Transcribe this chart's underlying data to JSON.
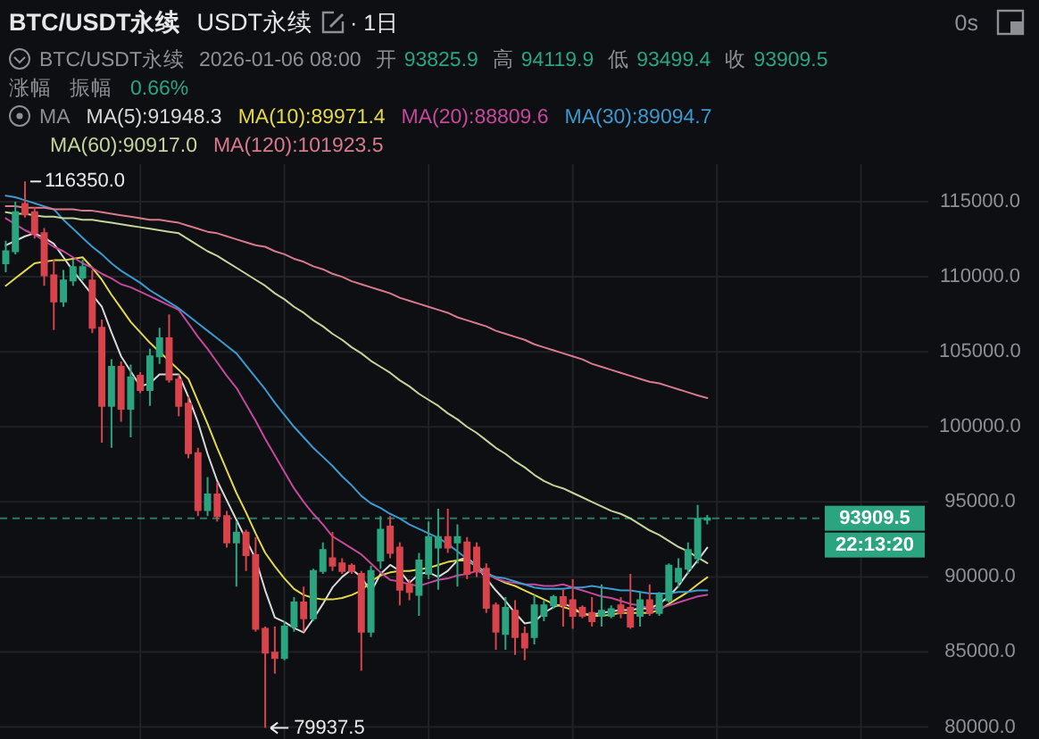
{
  "chart_data": {
    "type": "candlestick",
    "title": "BTC/USDT永续",
    "subtitle": "USDT永续",
    "categories": [
      null,
      null,
      null,
      null,
      null,
      null,
      null,
      null,
      null,
      null,
      null,
      null,
      null,
      null,
      null,
      null,
      null,
      null,
      null,
      null,
      null,
      null,
      null,
      null,
      null,
      null,
      null,
      null,
      null,
      null,
      null,
      null,
      null,
      null,
      null,
      null,
      null,
      null,
      null,
      null,
      null,
      null,
      null,
      null,
      null,
      null,
      null,
      null,
      null,
      null,
      null,
      null,
      null,
      null,
      null,
      null,
      null,
      null,
      null,
      null,
      null,
      null,
      null,
      null,
      null,
      null,
      null,
      null,
      null,
      null,
      null,
      null,
      null,
      null
    ],
    "ohlc": [
      [
        110900,
        112400,
        110300,
        111700
      ],
      [
        111700,
        115000,
        111500,
        114300
      ],
      [
        114850,
        116350,
        113950,
        114150
      ],
      [
        114300,
        114650,
        112550,
        112900
      ],
      [
        112900,
        113250,
        109400,
        110100
      ],
      [
        110100,
        111150,
        106450,
        108350
      ],
      [
        108350,
        110450,
        108000,
        109750
      ],
      [
        109750,
        111150,
        109400,
        110650
      ],
      [
        109950,
        111150,
        109750,
        110650
      ],
      [
        109750,
        110450,
        106250,
        106600
      ],
      [
        106600,
        107150,
        98950,
        101400
      ],
      [
        101400,
        104500,
        98600,
        104000
      ],
      [
        104000,
        104350,
        100350,
        101200
      ],
      [
        101200,
        104150,
        99300,
        103300
      ],
      [
        103400,
        103650,
        102250,
        102450
      ],
      [
        102450,
        105200,
        101400,
        104700
      ],
      [
        104700,
        106600,
        104200,
        105900
      ],
      [
        105900,
        107500,
        102950,
        103150
      ],
      [
        103150,
        103500,
        100700,
        101400
      ],
      [
        101550,
        102000,
        97900,
        98250
      ],
      [
        98250,
        98600,
        94050,
        94450
      ],
      [
        94450,
        96650,
        94050,
        95500
      ],
      [
        95500,
        96300,
        93700,
        94050
      ],
      [
        94050,
        94400,
        91950,
        92300
      ],
      [
        92300,
        93700,
        89350,
        92950
      ],
      [
        92950,
        93150,
        90400,
        91450
      ],
      [
        91450,
        92650,
        86350,
        86550
      ],
      [
        86550,
        86700,
        79937.5,
        84950
      ],
      [
        84950,
        86700,
        83550,
        84600
      ],
      [
        84600,
        87050,
        84450,
        86700
      ],
      [
        86700,
        88650,
        86350,
        88300
      ],
      [
        88300,
        89350,
        86350,
        87250
      ],
      [
        87250,
        90550,
        87050,
        90400
      ],
      [
        90400,
        92300,
        90200,
        91800
      ],
      [
        91250,
        93000,
        90400,
        90750
      ],
      [
        90900,
        91250,
        90200,
        90400
      ],
      [
        90750,
        90900,
        90200,
        90400
      ],
      [
        90200,
        90400,
        83750,
        86350
      ],
      [
        86350,
        90750,
        86000,
        90400
      ],
      [
        91100,
        94050,
        90550,
        93150
      ],
      [
        93350,
        94050,
        91250,
        91600
      ],
      [
        91950,
        92300,
        88100,
        89150
      ],
      [
        89500,
        89850,
        88450,
        89000
      ],
      [
        88800,
        91600,
        87400,
        91100
      ],
      [
        90200,
        93700,
        89850,
        92650
      ],
      [
        91950,
        94550,
        89150,
        92650
      ],
      [
        92650,
        94550,
        91600,
        91950
      ],
      [
        92300,
        93500,
        89350,
        92650
      ],
      [
        92300,
        92650,
        89850,
        90200
      ],
      [
        91950,
        92300,
        90000,
        90400
      ],
      [
        90550,
        90900,
        87600,
        87950
      ],
      [
        88100,
        88300,
        85150,
        86350
      ],
      [
        86200,
        88650,
        85150,
        87950
      ],
      [
        87750,
        88450,
        84800,
        86000
      ],
      [
        86200,
        86700,
        84450,
        85300
      ],
      [
        86000,
        88800,
        85500,
        88100
      ],
      [
        87400,
        88450,
        87050,
        88100
      ],
      [
        88100,
        88800,
        87900,
        88650
      ],
      [
        88650,
        89150,
        86700,
        88100
      ],
      [
        88450,
        89850,
        86550,
        87400
      ],
      [
        87950,
        88100,
        87250,
        87400
      ],
      [
        87600,
        88650,
        86700,
        87050
      ],
      [
        87400,
        89500,
        86700,
        87750
      ],
      [
        87400,
        88100,
        87250,
        87850
      ],
      [
        88100,
        88650,
        87250,
        87600
      ],
      [
        87950,
        90200,
        86550,
        86700
      ],
      [
        87400,
        88950,
        86700,
        88450
      ],
      [
        88450,
        89500,
        87400,
        87600
      ],
      [
        87600,
        89000,
        87400,
        88800
      ],
      [
        88450,
        90900,
        88300,
        90750
      ],
      [
        89700,
        91250,
        89300,
        90550
      ],
      [
        90550,
        92300,
        90200,
        91800
      ],
      [
        91250,
        94800,
        90900,
        93870
      ],
      [
        93825.9,
        94119.9,
        93499.4,
        93909.5
      ]
    ],
    "colors": [
      "#2aa57f",
      "#2aa57f",
      "#d8434c",
      "#d8434c",
      "#d8434c",
      "#d8434c",
      "#2aa57f",
      "#2aa57f",
      "#2aa57f",
      "#d8434c",
      "#d8434c",
      "#2aa57f",
      "#d8434c",
      "#2aa57f",
      "#d8434c",
      "#2aa57f",
      "#2aa57f",
      "#d8434c",
      "#d8434c",
      "#d8434c",
      "#d8434c",
      "#2aa57f",
      "#d8434c",
      "#d8434c",
      "#2aa57f",
      "#d8434c",
      "#d8434c",
      "#d8434c",
      "#d8434c",
      "#2aa57f",
      "#2aa57f",
      "#d8434c",
      "#2aa57f",
      "#2aa57f",
      "#d8434c",
      "#d8434c",
      "#d8434c",
      "#d8434c",
      "#2aa57f",
      "#2aa57f",
      "#d8434c",
      "#d8434c",
      "#d8434c",
      "#2aa57f",
      "#2aa57f",
      "#2aa57f",
      "#d8434c",
      "#2aa57f",
      "#d8434c",
      "#d8434c",
      "#d8434c",
      "#d8434c",
      "#2aa57f",
      "#d8434c",
      "#d8434c",
      "#2aa57f",
      "#2aa57f",
      "#2aa57f",
      "#d8434c",
      "#d8434c",
      "#d8434c",
      "#d8434c",
      "#2aa57f",
      "#2aa57f",
      "#d8434c",
      "#d8434c",
      "#2aa57f",
      "#d8434c",
      "#2aa57f",
      "#2aa57f",
      "#2aa57f",
      "#2aa57f",
      "#2aa57f",
      "#2aa57f"
    ],
    "series": [
      {
        "name": "MA(5):91948.3",
        "type": "line",
        "color": "#d9d9d9",
        "values": [
          112100,
          112400,
          112700,
          112900,
          112600,
          112200,
          111300,
          110400,
          109600,
          108800,
          108000,
          106300,
          104700,
          103700,
          102700,
          102900,
          103500,
          103500,
          103500,
          102000,
          100300,
          98200,
          96400,
          95100,
          93800,
          92500,
          91200,
          89100,
          87300,
          87000,
          86600,
          86300,
          87200,
          88200,
          89300,
          90000,
          90500,
          90000,
          89000,
          90200,
          90800,
          90400,
          89600,
          90200,
          90300,
          90000,
          90400,
          91100,
          91300,
          90700,
          89900,
          89100,
          88400,
          87600,
          86900,
          87000,
          87600,
          88000,
          88200,
          88000,
          87500,
          87500,
          87600,
          87700,
          87800,
          87800,
          87900,
          87900,
          88200,
          88700,
          89400,
          90300,
          91100,
          91948.3
        ]
      },
      {
        "name": "MA(10):89971.4",
        "type": "line",
        "color": "#e3d94a",
        "values": [
          109400,
          109900,
          110400,
          110900,
          111000,
          111100,
          111100,
          111200,
          111300,
          110600,
          109800,
          108800,
          107900,
          107000,
          106300,
          105600,
          105000,
          104400,
          103800,
          103200,
          101700,
          100200,
          98600,
          97100,
          95600,
          94300,
          92900,
          91600,
          90700,
          89900,
          89200,
          88800,
          88600,
          88500,
          88500,
          88600,
          88800,
          89100,
          89700,
          90100,
          90300,
          90400,
          90400,
          90500,
          90600,
          90800,
          91000,
          91100,
          91100,
          90700,
          90300,
          89900,
          89600,
          89400,
          89100,
          88800,
          88500,
          88200,
          88000,
          87800,
          87600,
          87400,
          87400,
          87500,
          87600,
          87600,
          87600,
          87600,
          87800,
          88200,
          88600,
          89000,
          89500,
          89971.4
        ]
      },
      {
        "name": "MA(20):88809.6",
        "type": "line",
        "color": "#c5489c",
        "values": [
          113900,
          113500,
          113100,
          112800,
          112400,
          112000,
          111700,
          111300,
          110900,
          110600,
          110200,
          109900,
          109500,
          109300,
          109000,
          108700,
          108400,
          108100,
          107800,
          106900,
          106000,
          105200,
          104300,
          103400,
          102600,
          101500,
          100400,
          99200,
          98100,
          97000,
          95900,
          95000,
          94200,
          93500,
          92700,
          92300,
          91900,
          91500,
          90900,
          90300,
          89800,
          89700,
          89500,
          89400,
          89600,
          89800,
          89900,
          90100,
          90200,
          90400,
          90200,
          89900,
          89700,
          89600,
          89500,
          89500,
          89400,
          89400,
          89500,
          89300,
          89100,
          88900,
          88700,
          88600,
          88400,
          88200,
          88100,
          87900,
          87900,
          88100,
          88300,
          88500,
          88700,
          88809.6
        ]
      },
      {
        "name": "MA(30):89094.7",
        "type": "line",
        "color": "#3b9ad0",
        "values": [
          115400,
          115300,
          115100,
          114900,
          114700,
          114500,
          113800,
          113200,
          112600,
          112000,
          111500,
          110900,
          110400,
          110000,
          109600,
          109100,
          108700,
          108300,
          107900,
          107400,
          106900,
          106400,
          105900,
          105400,
          104900,
          104100,
          103300,
          102500,
          101600,
          100800,
          100000,
          99300,
          98600,
          98000,
          97400,
          96700,
          96100,
          95400,
          94900,
          94600,
          94200,
          93900,
          93500,
          93200,
          92900,
          92600,
          92200,
          91700,
          91200,
          90700,
          90200,
          90000,
          89900,
          89700,
          89500,
          89300,
          89200,
          89200,
          89200,
          89300,
          89300,
          89400,
          89300,
          89200,
          89100,
          89100,
          89000,
          88900,
          88900,
          88900,
          89000,
          89000,
          89100,
          89094.7
        ]
      },
      {
        "name": "MA(60):90917.0",
        "type": "line",
        "color": "#c3d59a",
        "values": [
          114300,
          114200,
          114200,
          114100,
          114000,
          114000,
          113900,
          113900,
          113800,
          113800,
          113700,
          113600,
          113500,
          113400,
          113300,
          113200,
          113100,
          113000,
          112900,
          112500,
          112100,
          111700,
          111400,
          111000,
          110600,
          110200,
          109800,
          109400,
          108900,
          108500,
          108000,
          107600,
          107100,
          106700,
          106200,
          105800,
          105300,
          104900,
          104400,
          104000,
          103600,
          103100,
          102700,
          102200,
          101800,
          101400,
          100900,
          100500,
          100000,
          99600,
          99100,
          98600,
          98200,
          97700,
          97300,
          96800,
          96400,
          96100,
          95900,
          95600,
          95300,
          95000,
          94700,
          94400,
          94200,
          93900,
          93500,
          93100,
          92800,
          92400,
          92000,
          91700,
          91300,
          90917.0
        ]
      },
      {
        "name": "MA(120):101923.5",
        "type": "line",
        "color": "#d97a8c",
        "values": [
          114700,
          114700,
          114600,
          114600,
          114600,
          114500,
          114500,
          114500,
          114400,
          114400,
          114300,
          114200,
          114100,
          114000,
          113900,
          113800,
          113800,
          113700,
          113600,
          113400,
          113200,
          113000,
          112900,
          112700,
          112500,
          112300,
          112100,
          112000,
          111700,
          111500,
          111200,
          111000,
          110700,
          110500,
          110200,
          110000,
          109700,
          109500,
          109300,
          109100,
          108900,
          108600,
          108400,
          108200,
          108000,
          107800,
          107600,
          107300,
          107100,
          106900,
          106700,
          106400,
          106200,
          106000,
          105800,
          105500,
          105300,
          105100,
          104900,
          104700,
          104500,
          104200,
          104000,
          103800,
          103600,
          103400,
          103200,
          103000,
          102900,
          102700,
          102500,
          102300,
          102100,
          101923.5
        ]
      }
    ],
    "ylim": [
      79200,
      117500
    ],
    "yticks": [
      {
        "value": 80000,
        "label": "80000.0"
      },
      {
        "value": 85000,
        "label": "85000.0"
      },
      {
        "value": 90000,
        "label": "90000.0"
      },
      {
        "value": 95000,
        "label": "95000.0"
      },
      {
        "value": 100000,
        "label": "100000.0"
      },
      {
        "value": 105000,
        "label": "105000.0"
      },
      {
        "value": 110000,
        "label": "110000.0"
      },
      {
        "value": 115000,
        "label": "115000.0"
      }
    ],
    "grid": true,
    "legend": "top left",
    "ref_lines": [
      {
        "axis": "y",
        "value": 93909.5,
        "color": "#2aa57f",
        "line_style": "dashed"
      }
    ],
    "annotations": [
      "· 1日",
      "0s",
      "BTC/USDT永续",
      "2026-01-06 08:00",
      "开",
      "93825.9",
      "高",
      "94119.9",
      "低",
      "93499.4",
      "收",
      "93909.5",
      "涨幅",
      "振幅",
      "0.66%",
      "MA",
      "22:13:20",
      "116350.0",
      "79937.5",
      "93909.5"
    ]
  }
}
